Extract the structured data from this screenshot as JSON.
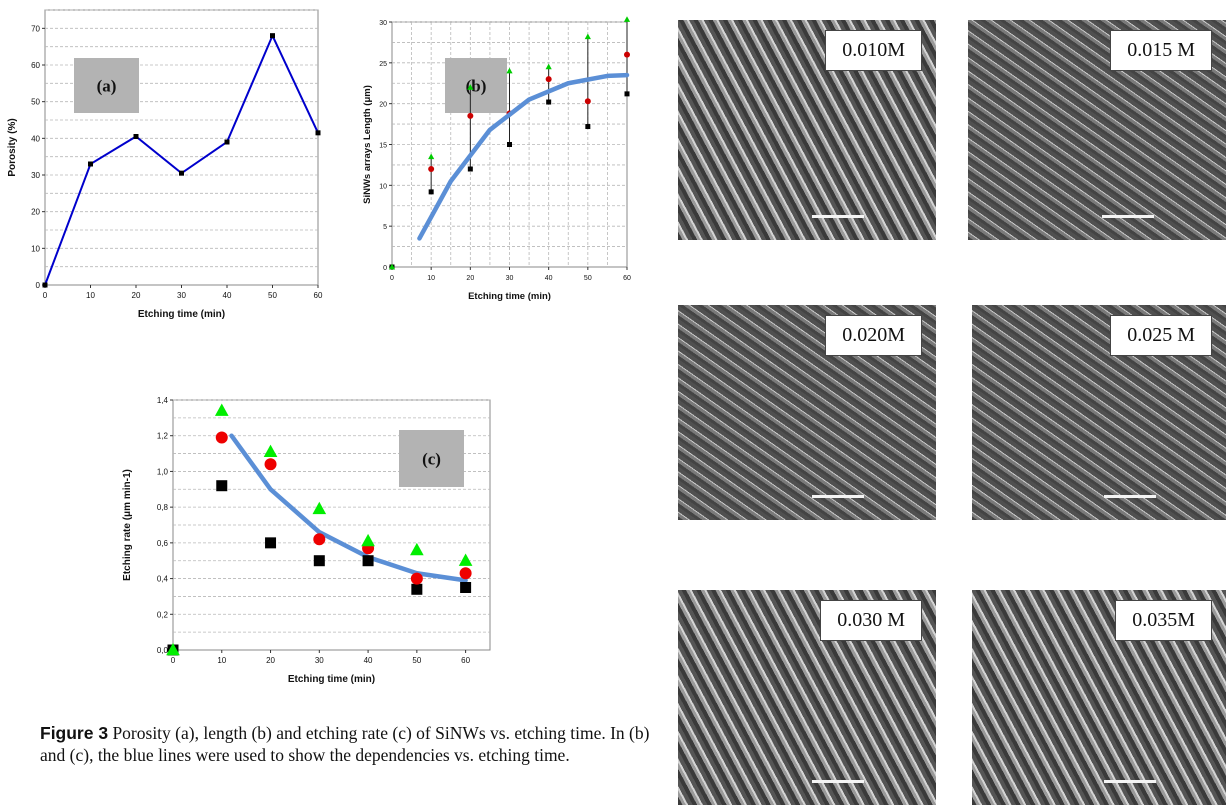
{
  "charts": {
    "a": {
      "type": "line",
      "tag": "(a)",
      "xlabel": "Etching time (min)",
      "ylabel": "Porosity (%)",
      "xlim": [
        0,
        60
      ],
      "ylim": [
        0,
        75
      ],
      "xticks": [
        "0",
        "10",
        "20",
        "30",
        "40",
        "50",
        "60"
      ],
      "yticks": [
        "0",
        "10",
        "20",
        "30",
        "40",
        "50",
        "60",
        "70"
      ],
      "grid": "horizontal",
      "color": "#0000cc",
      "x": [
        0,
        10,
        20,
        30,
        40,
        50,
        60
      ],
      "y": [
        0,
        33,
        40.5,
        30.5,
        39,
        68,
        41.5
      ]
    },
    "b": {
      "type": "scatter",
      "tag": "(b)",
      "xlabel": "Etching time (min)",
      "ylabel": "SiNWs arrays Length (μm)",
      "xlim": [
        0,
        60
      ],
      "ylim": [
        0,
        30
      ],
      "xticks": [
        "0",
        "10",
        "20",
        "30",
        "40",
        "50",
        "60"
      ],
      "yticks": [
        "0",
        "5",
        "10",
        "15",
        "20",
        "25",
        "30"
      ],
      "grid": "both",
      "x": [
        0,
        10,
        20,
        30,
        40,
        50,
        60
      ],
      "series": [
        {
          "marker": "square",
          "color": "#000000",
          "values": [
            0,
            9.2,
            12,
            15,
            20.2,
            17.2,
            21.2
          ]
        },
        {
          "marker": "circle",
          "color": "#cc0000",
          "values": [
            null,
            12,
            18.5,
            18.8,
            23,
            20.3,
            26
          ]
        },
        {
          "marker": "triangle",
          "color": "#00cc00",
          "values": [
            0,
            13.5,
            22,
            24,
            24.5,
            28.2,
            30.3
          ]
        }
      ],
      "fit": {
        "color": "#5b8fd6",
        "x": [
          7,
          15,
          25,
          35,
          45,
          55,
          60
        ],
        "y": [
          3.5,
          10.5,
          16.8,
          20.5,
          22.5,
          23.4,
          23.5
        ]
      }
    },
    "c": {
      "type": "scatter",
      "tag": "(c)",
      "xlabel": "Etching time (min)",
      "ylabel": "Etching rate (μm min-1)",
      "xlim": [
        0,
        65
      ],
      "ylim": [
        0,
        1.4
      ],
      "xticks": [
        "0",
        "10",
        "20",
        "30",
        "40",
        "50",
        "60"
      ],
      "yticks": [
        "0,0",
        "0,2",
        "0,4",
        "0,6",
        "0,8",
        "1,0",
        "1,2",
        "1,4"
      ],
      "grid": "horizontal",
      "x": [
        0,
        10,
        20,
        30,
        40,
        50,
        60
      ],
      "series": [
        {
          "marker": "square",
          "color": "#000000",
          "values": [
            0,
            0.92,
            0.6,
            0.5,
            0.5,
            0.34,
            0.35
          ]
        },
        {
          "marker": "circle",
          "color": "#ee0000",
          "values": [
            null,
            1.19,
            1.04,
            0.62,
            0.57,
            0.4,
            0.43
          ]
        },
        {
          "marker": "triangle",
          "color": "#00ee00",
          "values": [
            0,
            1.34,
            1.11,
            0.79,
            0.61,
            0.56,
            0.5
          ]
        }
      ],
      "fit": {
        "color": "#5b8fd6",
        "x": [
          12,
          20,
          30,
          40,
          50,
          60
        ],
        "y": [
          1.2,
          0.9,
          0.66,
          0.52,
          0.43,
          0.39
        ]
      }
    }
  },
  "sem_images": [
    {
      "label": "0.010M"
    },
    {
      "label": "0.015 M"
    },
    {
      "label": "0.020M"
    },
    {
      "label": "0.025 M"
    },
    {
      "label": "0.030 M"
    },
    {
      "label": "0.035M"
    }
  ],
  "caption": {
    "lead": "Figure 3",
    "text": " Porosity (a), length (b) and etching rate (c) of SiNWs vs. etching time. In (b) and (c), the blue lines were used to show the dependencies vs. etching time."
  }
}
